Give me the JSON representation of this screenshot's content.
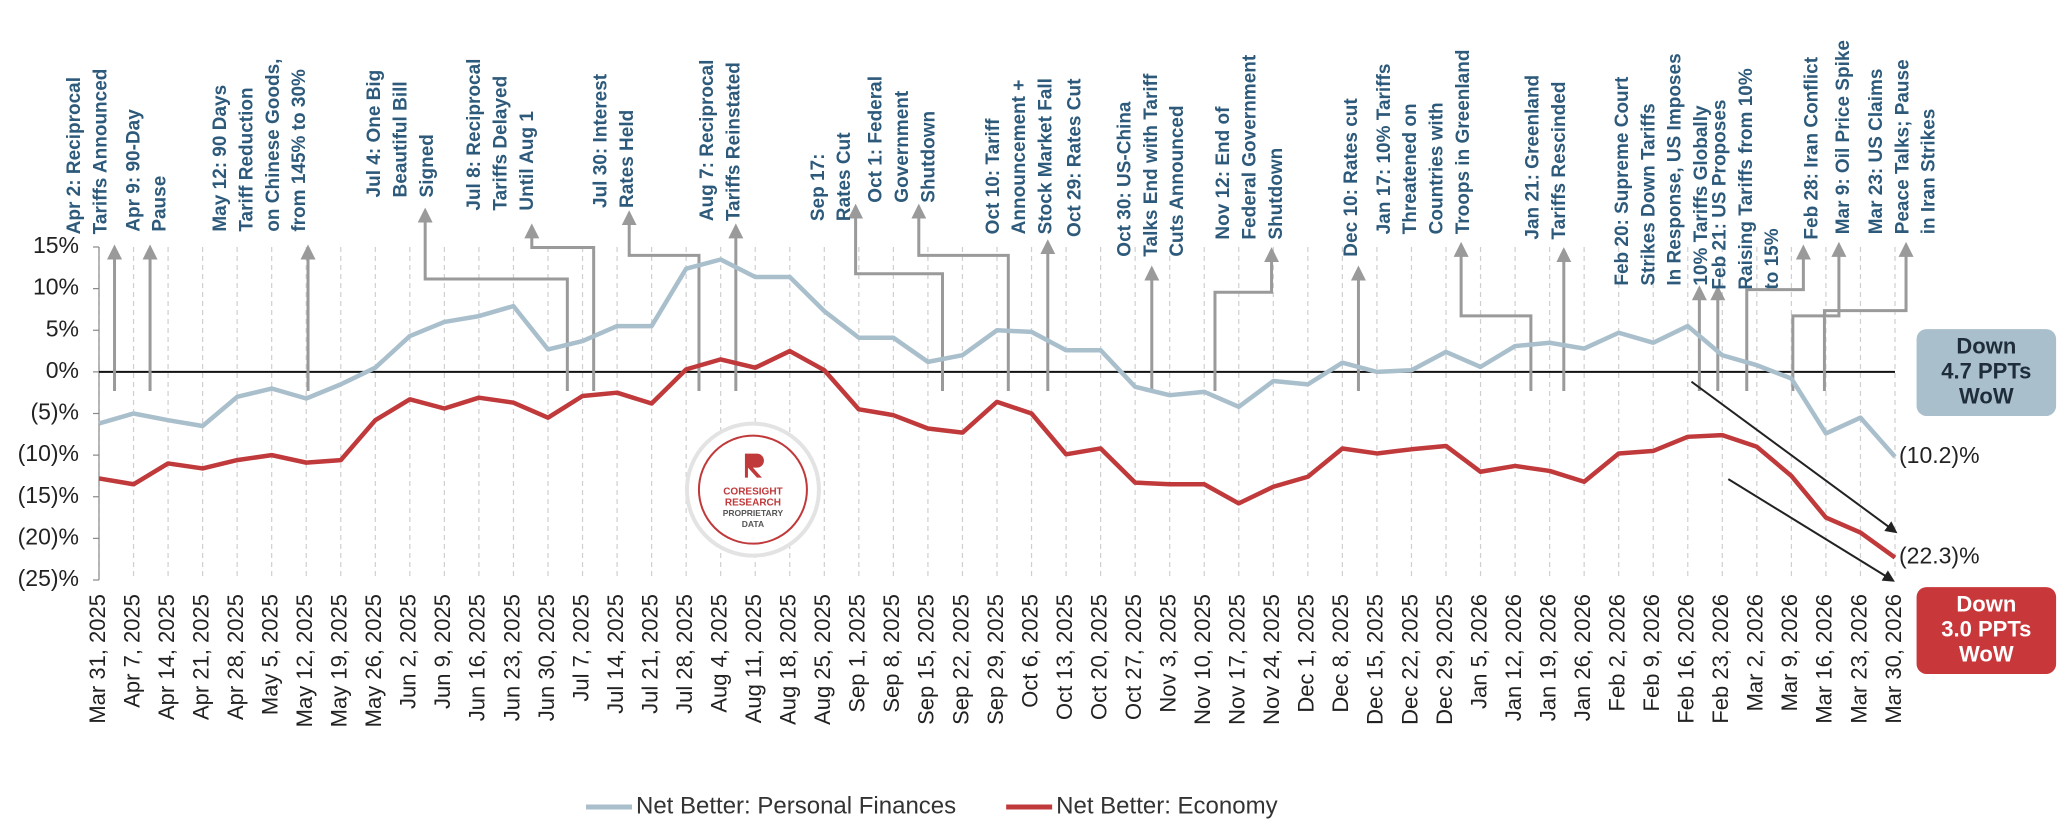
{
  "chart_data": {
    "type": "line",
    "categories": [
      "Mar 31, 2025",
      "Apr 7, 2025",
      "Apr 14, 2025",
      "Apr 21, 2025",
      "Apr 28, 2025",
      "May 5, 2025",
      "May 12, 2025",
      "May 19, 2025",
      "May 26, 2025",
      "Jun 2, 2025",
      "Jun 9, 2025",
      "Jun 16, 2025",
      "Jun 23, 2025",
      "Jun 30, 2025",
      "Jul 7, 2025",
      "Jul 14, 2025",
      "Jul 21, 2025",
      "Jul 28, 2025",
      "Aug 4, 2025",
      "Aug 11, 2025",
      "Aug 18, 2025",
      "Aug 25, 2025",
      "Sep 1, 2025",
      "Sep 8, 2025",
      "Sep 15, 2025",
      "Sep 22, 2025",
      "Sep 29, 2025",
      "Oct 6, 2025",
      "Oct 13, 2025",
      "Oct 20, 2025",
      "Oct 27, 2025",
      "Nov 3, 2025",
      "Nov 10, 2025",
      "Nov 17, 2025",
      "Nov 24, 2025",
      "Dec 1, 2025",
      "Dec 8, 2025",
      "Dec 15, 2025",
      "Dec 22, 2025",
      "Dec 29, 2025",
      "Jan 5, 2026",
      "Jan 12, 2026",
      "Jan 19, 2026",
      "Jan 26, 2026",
      "Feb 2, 2026",
      "Feb 9, 2026",
      "Feb 16, 2026",
      "Feb 23, 2026",
      "Mar 2, 2026",
      "Mar 9, 2026",
      "Mar 16, 2026",
      "Mar 23, 2026",
      "Mar 30, 2026"
    ],
    "series": [
      {
        "name": "Net Better: Personal Finances",
        "color": "#a9bfcc",
        "values": [
          -6.2,
          -5,
          -5.8,
          -6.5,
          -3,
          -2,
          -3.2,
          -1.5,
          0.5,
          4.3,
          6,
          6.7,
          7.9,
          2.7,
          3.7,
          5.5,
          5.5,
          12.4,
          13.5,
          11.4,
          11.4,
          7.3,
          4.1,
          4.1,
          1.2,
          2,
          5,
          4.8,
          2.6,
          2.6,
          -1.8,
          -2.8,
          -2.4,
          -4.2,
          -1.1,
          -1.5,
          1.1,
          0,
          0.2,
          2.4,
          0.6,
          3.1,
          3.5,
          2.8,
          4.7,
          3.5,
          5.5,
          2,
          0.8,
          -0.8,
          -7.4,
          -5.5,
          -10.2
        ],
        "value_labels": [
          null,
          null,
          null,
          null,
          null,
          null,
          null,
          null,
          null,
          null,
          null,
          null,
          null,
          null,
          null,
          null,
          null,
          null,
          null,
          null,
          null,
          null,
          null,
          null,
          null,
          null,
          null,
          null,
          null,
          null,
          null,
          null,
          null,
          null,
          null,
          null,
          null,
          null,
          null,
          null,
          null,
          null,
          null,
          null,
          null,
          null,
          null,
          null,
          null,
          null,
          null,
          null,
          "(10.2)%"
        ]
      },
      {
        "name": "Net Better: Economy",
        "color": "#c0393b",
        "values": [
          -12.8,
          -13.5,
          -11,
          -11.6,
          -10.6,
          -10,
          -10.9,
          -10.6,
          -5.8,
          -3.3,
          -4.4,
          -3.1,
          -3.7,
          -5.5,
          -2.9,
          -2.5,
          -3.8,
          0.3,
          1.5,
          0.5,
          2.5,
          0.2,
          -4.5,
          -5.2,
          -6.8,
          -7.3,
          -3.6,
          -5,
          -9.9,
          -9.2,
          -13.3,
          -13.5,
          -13.5,
          -15.8,
          -13.8,
          -12.6,
          -9.2,
          -9.8,
          -9.3,
          -8.9,
          -12,
          -11.3,
          -11.9,
          -13.2,
          -9.8,
          -9.5,
          -7.8,
          -7.6,
          -9,
          -12.5,
          -17.5,
          -19.3,
          -22.3
        ],
        "value_labels": [
          null,
          null,
          null,
          null,
          null,
          null,
          null,
          null,
          null,
          null,
          null,
          null,
          null,
          null,
          null,
          null,
          null,
          null,
          null,
          null,
          null,
          null,
          null,
          null,
          null,
          null,
          null,
          null,
          null,
          null,
          null,
          null,
          null,
          null,
          null,
          null,
          null,
          null,
          null,
          null,
          null,
          null,
          null,
          null,
          null,
          null,
          null,
          null,
          null,
          null,
          null,
          null,
          "(22.3)%"
        ]
      }
    ],
    "ylim": [
      -25,
      15
    ],
    "yticks": [
      {
        "value": 15,
        "label": "15%"
      },
      {
        "value": 10,
        "label": "10%"
      },
      {
        "value": 5,
        "label": "5%"
      },
      {
        "value": 0,
        "label": "0%"
      },
      {
        "value": -5,
        "label": "(5)%"
      },
      {
        "value": -10,
        "label": "(10)%"
      },
      {
        "value": -15,
        "label": "(15)%"
      },
      {
        "value": -20,
        "label": "(20)%"
      },
      {
        "value": -25,
        "label": "(25)%"
      }
    ],
    "grid": true,
    "legend": "bottom",
    "annotations": [
      {
        "lines": [
          "Apr 2: Reciprocal",
          "Tariffs Announced"
        ]
      },
      {
        "lines": [
          "Apr 9: 90-Day",
          "Pause"
        ]
      },
      {
        "lines": [
          "May 12: 90 Days",
          "Tariff Reduction",
          "on Chinese Goods,",
          "from 145% to 30%"
        ]
      },
      {
        "lines": [
          "Jul 4: One Big",
          "Beautiful Bill",
          "Signed"
        ]
      },
      {
        "lines": [
          "Jul 8: Reciprocal",
          "Tariffs Delayed",
          "Until Aug 1"
        ]
      },
      {
        "lines": [
          "Jul 30: Interest",
          "Rates Held"
        ]
      },
      {
        "lines": [
          "Aug 7: Reciprocal",
          "Tariffs Reinstated"
        ]
      },
      {
        "lines": [
          "Sep 17:",
          "Rates Cut"
        ]
      },
      {
        "lines": [
          "Oct 1: Federal",
          "Government",
          "Shutdown"
        ]
      },
      {
        "lines": [
          "Oct 10: Tariff",
          "Announcement +",
          "Stock Market Fall"
        ]
      },
      {
        "lines": [
          "Oct 29: Rates Cut"
        ]
      },
      {
        "lines": [
          "Oct 30: US-China",
          "Talks End with Tariff",
          "Cuts Announced"
        ]
      },
      {
        "lines": [
          "Nov 12: End of",
          "Federal Government",
          "Shutdown"
        ]
      },
      {
        "lines": [
          "Dec 10: Rates cut"
        ]
      },
      {
        "lines": [
          "Jan 17: 10% Tariffs",
          "Threatened on",
          "Countries with",
          "Troops in Greenland"
        ]
      },
      {
        "lines": [
          "Jan 21: Greenland",
          "Tariffs Rescinded"
        ]
      },
      {
        "lines": [
          "Feb 20: Supreme Court",
          "Strikes Down Tariffs",
          "In Response, US Imposes",
          "10% Tariffs Globally"
        ]
      },
      {
        "lines": [
          "Feb 21: US Proposes",
          "Raising Tariffs from 10%",
          "to 15%"
        ]
      },
      {
        "lines": [
          "Feb 28: Iran Conflict"
        ]
      },
      {
        "lines": [
          "Mar 9: Oil Price Spike"
        ]
      },
      {
        "lines": [
          "Mar 23: US Claims",
          "Peace Talks; Pause",
          "in Iran Strikes"
        ]
      }
    ],
    "callouts": [
      {
        "lines": [
          "Down",
          "4.7 PPTs",
          "WoW"
        ]
      },
      {
        "lines": [
          "Down",
          "3.0 PPTs",
          "WoW"
        ]
      }
    ],
    "watermark": {
      "lines": [
        "CORESIGHT",
        "RESEARCH",
        "PROPRIETARY",
        "DATA"
      ]
    }
  }
}
